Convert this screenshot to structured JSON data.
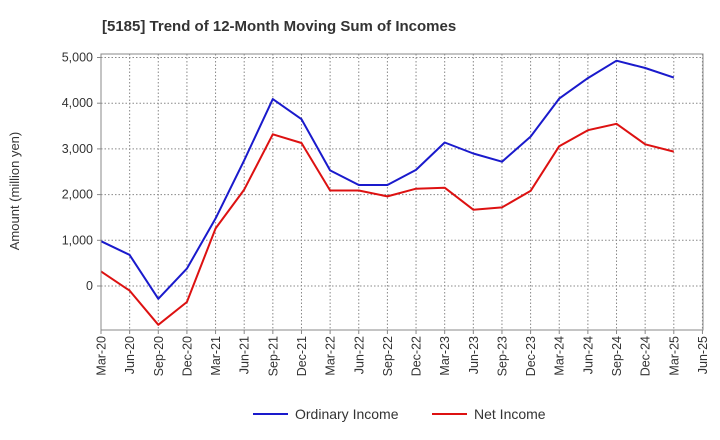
{
  "chart_data": {
    "type": "line",
    "title": "[5185]  Trend of 12-Month Moving Sum of Incomes",
    "xlabel": "",
    "ylabel": "Amount (million yen)",
    "ylim": [
      -950,
      5100
    ],
    "yticks": [
      0,
      1000,
      2000,
      3000,
      4000,
      5000
    ],
    "ytick_labels": [
      "0",
      "1,000",
      "2,000",
      "3,000",
      "4,000",
      "5,000"
    ],
    "categories": [
      "Mar-20",
      "Jun-20",
      "Sep-20",
      "Dec-20",
      "Mar-21",
      "Jun-21",
      "Sep-21",
      "Dec-21",
      "Mar-22",
      "Jun-22",
      "Sep-22",
      "Dec-22",
      "Mar-23",
      "Jun-23",
      "Sep-23",
      "Dec-23",
      "Mar-24",
      "Jun-24",
      "Sep-24",
      "Dec-24",
      "Mar-25",
      "Jun-25"
    ],
    "grid": true,
    "legend_position": "bottom-center",
    "series": [
      {
        "name": "Ordinary Income",
        "color": "#1a1acc",
        "values": [
          980,
          680,
          -280,
          380,
          1480,
          2750,
          4090,
          3650,
          2530,
          2210,
          2210,
          2540,
          3140,
          2900,
          2720,
          3270,
          4100,
          4550,
          4930,
          4770,
          4560,
          null
        ]
      },
      {
        "name": "Net Income",
        "color": "#dd1111",
        "values": [
          320,
          -100,
          -850,
          -350,
          1260,
          2110,
          3320,
          3130,
          2090,
          2090,
          1960,
          2130,
          2150,
          1670,
          1720,
          2080,
          3060,
          3410,
          3550,
          3100,
          2940,
          null
        ]
      }
    ]
  }
}
